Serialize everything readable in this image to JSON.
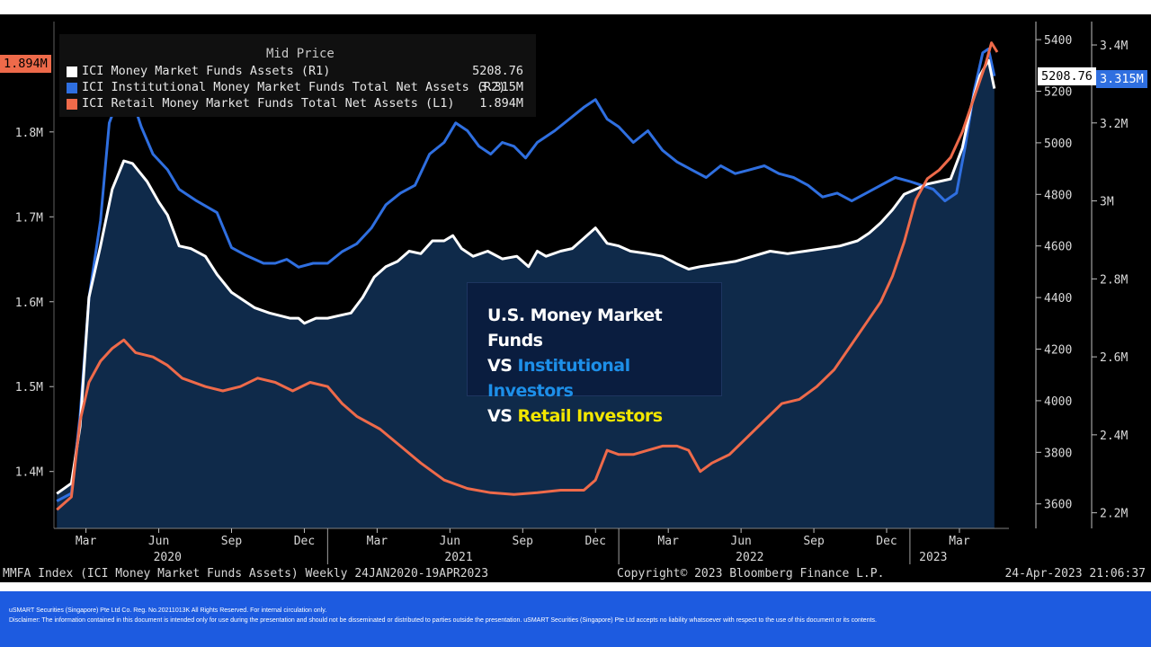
{
  "chart_data": {
    "type": "line",
    "legend": {
      "title": "Mid Price",
      "entries": [
        {
          "label": "ICI Money Market Funds Assets  (R1)",
          "value": "5208.76",
          "color": "#ffffff"
        },
        {
          "label": "ICI Institutional Money Market Funds Total Net Assets  (R2)",
          "value": "3.315M",
          "color": "#2f6fe0"
        },
        {
          "label": "ICI Retail Money Market Funds Total Net Assets  (L1)",
          "value": "1.894M",
          "color": "#ee6a4a"
        }
      ]
    },
    "last_value_tags": {
      "left": "1.894M",
      "r1": "5208.76",
      "r2": "3.315M"
    },
    "axes": {
      "left": {
        "ticks": [
          "1.4M",
          "1.5M",
          "1.6M",
          "1.7M",
          "1.8M"
        ],
        "values": [
          1.4,
          1.5,
          1.6,
          1.7,
          1.8
        ],
        "ylim": [
          1.333,
          1.93
        ]
      },
      "r1": {
        "ticks": [
          "3600",
          "3800",
          "4000",
          "4200",
          "4400",
          "4600",
          "4800",
          "5000",
          "5200",
          "5400"
        ],
        "values": [
          3600,
          3800,
          4000,
          4200,
          4400,
          4600,
          4800,
          5000,
          5200,
          5400
        ],
        "ylim": [
          3505,
          5470
        ]
      },
      "r2": {
        "ticks": [
          "2.2M",
          "2.4M",
          "2.6M",
          "2.8M",
          "3M",
          "3.2M",
          "3.4M"
        ],
        "values": [
          2.2,
          2.4,
          2.6,
          2.8,
          3.0,
          3.2,
          3.4
        ],
        "ylim": [
          2.16,
          3.46
        ]
      },
      "x": {
        "month_ticks": [
          {
            "label": "Mar",
            "t": 2020.17
          },
          {
            "label": "Jun",
            "t": 2020.42
          },
          {
            "label": "Sep",
            "t": 2020.67
          },
          {
            "label": "Dec",
            "t": 2020.92
          },
          {
            "label": "Mar",
            "t": 2021.17
          },
          {
            "label": "Jun",
            "t": 2021.42
          },
          {
            "label": "Sep",
            "t": 2021.67
          },
          {
            "label": "Dec",
            "t": 2021.92
          },
          {
            "label": "Mar",
            "t": 2022.17
          },
          {
            "label": "Jun",
            "t": 2022.42
          },
          {
            "label": "Sep",
            "t": 2022.67
          },
          {
            "label": "Dec",
            "t": 2022.92
          },
          {
            "label": "Mar",
            "t": 2023.17
          }
        ],
        "year_labels": [
          {
            "label": "2020",
            "t": 2020.45
          },
          {
            "label": "2021",
            "t": 2021.45
          },
          {
            "label": "2022",
            "t": 2022.45
          },
          {
            "label": "2023",
            "t": 2023.08
          }
        ],
        "year_dividers": [
          2021.0,
          2022.0,
          2023.0
        ],
        "xlim": [
          2020.06,
          2023.34
        ]
      }
    },
    "series": [
      {
        "name": "ICI Money Market Funds Assets  (R1)",
        "axis": "r1",
        "color": "#ffffff",
        "points": [
          [
            2020.07,
            3640
          ],
          [
            2020.12,
            3680
          ],
          [
            2020.15,
            3900
          ],
          [
            2020.18,
            4400
          ],
          [
            2020.22,
            4600
          ],
          [
            2020.26,
            4820
          ],
          [
            2020.3,
            4930
          ],
          [
            2020.33,
            4920
          ],
          [
            2020.38,
            4850
          ],
          [
            2020.42,
            4770
          ],
          [
            2020.45,
            4720
          ],
          [
            2020.49,
            4600
          ],
          [
            2020.53,
            4590
          ],
          [
            2020.58,
            4560
          ],
          [
            2020.62,
            4490
          ],
          [
            2020.67,
            4420
          ],
          [
            2020.75,
            4360
          ],
          [
            2020.8,
            4340
          ],
          [
            2020.87,
            4320
          ],
          [
            2020.9,
            4320
          ],
          [
            2020.92,
            4300
          ],
          [
            2020.96,
            4320
          ],
          [
            2021.0,
            4320
          ],
          [
            2021.04,
            4330
          ],
          [
            2021.08,
            4340
          ],
          [
            2021.12,
            4400
          ],
          [
            2021.16,
            4480
          ],
          [
            2021.2,
            4520
          ],
          [
            2021.24,
            4540
          ],
          [
            2021.28,
            4580
          ],
          [
            2021.32,
            4570
          ],
          [
            2021.36,
            4620
          ],
          [
            2021.4,
            4620
          ],
          [
            2021.43,
            4640
          ],
          [
            2021.46,
            4590
          ],
          [
            2021.5,
            4560
          ],
          [
            2021.55,
            4580
          ],
          [
            2021.6,
            4550
          ],
          [
            2021.65,
            4560
          ],
          [
            2021.69,
            4520
          ],
          [
            2021.72,
            4580
          ],
          [
            2021.75,
            4560
          ],
          [
            2021.8,
            4580
          ],
          [
            2021.84,
            4590
          ],
          [
            2021.88,
            4630
          ],
          [
            2021.92,
            4670
          ],
          [
            2021.96,
            4610
          ],
          [
            2022.0,
            4600
          ],
          [
            2022.04,
            4580
          ],
          [
            2022.1,
            4570
          ],
          [
            2022.15,
            4560
          ],
          [
            2022.2,
            4530
          ],
          [
            2022.24,
            4510
          ],
          [
            2022.28,
            4520
          ],
          [
            2022.34,
            4530
          ],
          [
            2022.4,
            4540
          ],
          [
            2022.46,
            4560
          ],
          [
            2022.52,
            4580
          ],
          [
            2022.58,
            4570
          ],
          [
            2022.64,
            4580
          ],
          [
            2022.7,
            4590
          ],
          [
            2022.76,
            4600
          ],
          [
            2022.82,
            4620
          ],
          [
            2022.86,
            4650
          ],
          [
            2022.9,
            4690
          ],
          [
            2022.94,
            4740
          ],
          [
            2022.98,
            4800
          ],
          [
            2023.02,
            4820
          ],
          [
            2023.06,
            4840
          ],
          [
            2023.1,
            4850
          ],
          [
            2023.14,
            4860
          ],
          [
            2023.18,
            4980
          ],
          [
            2023.21,
            5140
          ],
          [
            2023.24,
            5260
          ],
          [
            2023.27,
            5320
          ],
          [
            2023.29,
            5210
          ]
        ]
      },
      {
        "name": "ICI Institutional Money Market Funds Total Net Assets  (R2)",
        "axis": "r2",
        "color": "#2f6fe0",
        "points": [
          [
            2020.07,
            2.23
          ],
          [
            2020.12,
            2.25
          ],
          [
            2020.15,
            2.45
          ],
          [
            2020.18,
            2.75
          ],
          [
            2020.22,
            2.95
          ],
          [
            2020.25,
            3.2
          ],
          [
            2020.29,
            3.28
          ],
          [
            2020.32,
            3.28
          ],
          [
            2020.36,
            3.19
          ],
          [
            2020.4,
            3.12
          ],
          [
            2020.45,
            3.08
          ],
          [
            2020.49,
            3.03
          ],
          [
            2020.55,
            3.0
          ],
          [
            2020.62,
            2.97
          ],
          [
            2020.67,
            2.88
          ],
          [
            2020.72,
            2.86
          ],
          [
            2020.78,
            2.84
          ],
          [
            2020.82,
            2.84
          ],
          [
            2020.86,
            2.85
          ],
          [
            2020.9,
            2.83
          ],
          [
            2020.95,
            2.84
          ],
          [
            2021.0,
            2.84
          ],
          [
            2021.05,
            2.87
          ],
          [
            2021.1,
            2.89
          ],
          [
            2021.15,
            2.93
          ],
          [
            2021.2,
            2.99
          ],
          [
            2021.25,
            3.02
          ],
          [
            2021.3,
            3.04
          ],
          [
            2021.35,
            3.12
          ],
          [
            2021.4,
            3.15
          ],
          [
            2021.44,
            3.2
          ],
          [
            2021.48,
            3.18
          ],
          [
            2021.52,
            3.14
          ],
          [
            2021.56,
            3.12
          ],
          [
            2021.6,
            3.15
          ],
          [
            2021.64,
            3.14
          ],
          [
            2021.68,
            3.11
          ],
          [
            2021.72,
            3.15
          ],
          [
            2021.78,
            3.18
          ],
          [
            2021.83,
            3.21
          ],
          [
            2021.88,
            3.24
          ],
          [
            2021.92,
            3.26
          ],
          [
            2021.96,
            3.21
          ],
          [
            2022.0,
            3.19
          ],
          [
            2022.05,
            3.15
          ],
          [
            2022.1,
            3.18
          ],
          [
            2022.15,
            3.13
          ],
          [
            2022.2,
            3.1
          ],
          [
            2022.25,
            3.08
          ],
          [
            2022.3,
            3.06
          ],
          [
            2022.35,
            3.09
          ],
          [
            2022.4,
            3.07
          ],
          [
            2022.45,
            3.08
          ],
          [
            2022.5,
            3.09
          ],
          [
            2022.55,
            3.07
          ],
          [
            2022.6,
            3.06
          ],
          [
            2022.65,
            3.04
          ],
          [
            2022.7,
            3.01
          ],
          [
            2022.75,
            3.02
          ],
          [
            2022.8,
            3.0
          ],
          [
            2022.85,
            3.02
          ],
          [
            2022.9,
            3.04
          ],
          [
            2022.95,
            3.06
          ],
          [
            2023.0,
            3.05
          ],
          [
            2023.04,
            3.04
          ],
          [
            2023.08,
            3.03
          ],
          [
            2023.12,
            3.0
          ],
          [
            2023.16,
            3.02
          ],
          [
            2023.19,
            3.14
          ],
          [
            2023.22,
            3.28
          ],
          [
            2023.25,
            3.38
          ],
          [
            2023.27,
            3.39
          ],
          [
            2023.29,
            3.32
          ]
        ]
      },
      {
        "name": "ICI Retail Money Market Funds Total Net Assets  (L1)",
        "axis": "left",
        "color": "#ee6a4a",
        "points": [
          [
            2020.07,
            1.355
          ],
          [
            2020.12,
            1.37
          ],
          [
            2020.15,
            1.46
          ],
          [
            2020.18,
            1.505
          ],
          [
            2020.22,
            1.53
          ],
          [
            2020.26,
            1.545
          ],
          [
            2020.3,
            1.555
          ],
          [
            2020.34,
            1.54
          ],
          [
            2020.4,
            1.535
          ],
          [
            2020.45,
            1.525
          ],
          [
            2020.5,
            1.51
          ],
          [
            2020.58,
            1.5
          ],
          [
            2020.64,
            1.495
          ],
          [
            2020.7,
            1.5
          ],
          [
            2020.76,
            1.51
          ],
          [
            2020.82,
            1.505
          ],
          [
            2020.88,
            1.495
          ],
          [
            2020.94,
            1.505
          ],
          [
            2021.0,
            1.5
          ],
          [
            2021.05,
            1.48
          ],
          [
            2021.1,
            1.465
          ],
          [
            2021.18,
            1.45
          ],
          [
            2021.25,
            1.43
          ],
          [
            2021.32,
            1.41
          ],
          [
            2021.4,
            1.39
          ],
          [
            2021.48,
            1.38
          ],
          [
            2021.56,
            1.375
          ],
          [
            2021.64,
            1.373
          ],
          [
            2021.72,
            1.375
          ],
          [
            2021.8,
            1.378
          ],
          [
            2021.88,
            1.378
          ],
          [
            2021.92,
            1.39
          ],
          [
            2021.96,
            1.425
          ],
          [
            2022.0,
            1.42
          ],
          [
            2022.05,
            1.42
          ],
          [
            2022.1,
            1.425
          ],
          [
            2022.15,
            1.43
          ],
          [
            2022.2,
            1.43
          ],
          [
            2022.24,
            1.425
          ],
          [
            2022.28,
            1.4
          ],
          [
            2022.32,
            1.41
          ],
          [
            2022.38,
            1.42
          ],
          [
            2022.44,
            1.44
          ],
          [
            2022.5,
            1.46
          ],
          [
            2022.56,
            1.48
          ],
          [
            2022.62,
            1.485
          ],
          [
            2022.68,
            1.5
          ],
          [
            2022.74,
            1.52
          ],
          [
            2022.8,
            1.55
          ],
          [
            2022.86,
            1.58
          ],
          [
            2022.9,
            1.6
          ],
          [
            2022.94,
            1.63
          ],
          [
            2022.98,
            1.67
          ],
          [
            2023.02,
            1.72
          ],
          [
            2023.06,
            1.745
          ],
          [
            2023.1,
            1.755
          ],
          [
            2023.14,
            1.77
          ],
          [
            2023.18,
            1.8
          ],
          [
            2023.22,
            1.84
          ],
          [
            2023.26,
            1.88
          ],
          [
            2023.28,
            1.905
          ],
          [
            2023.3,
            1.894
          ]
        ]
      }
    ],
    "footer_left": "MMFA Index (ICI Money Market Funds Assets) Weekly 24JAN2020-19APR2023",
    "footer_mid": "Copyright© 2023 Bloomberg Finance L.P.",
    "footer_right": "24-Apr-2023 21:06:37"
  },
  "info_box": {
    "line1": "U.S. Money Market Funds",
    "line2_prefix": "VS ",
    "line2_highlight": "Institutional Investors",
    "line3_prefix": "VS ",
    "line3_highlight": "Retail Investors",
    "colors": {
      "white": "#ffffff",
      "blue": "#1d8fe8",
      "yellow": "#f2e600"
    }
  },
  "disclaimer": {
    "line1": "uSMART Securities (Singapore) Pte Ltd   Co. Reg. No.20211013K All Rights Reserved. For internal circulation only.",
    "line2": "Disclaimer: The information contained in this document is intended only for use during the presentation and should not be disseminated or distributed to parties outside the presentation. uSMART Securities (Singapore) Pte Ltd accepts no liability whatsoever with respect to the use of this document or its contents."
  }
}
